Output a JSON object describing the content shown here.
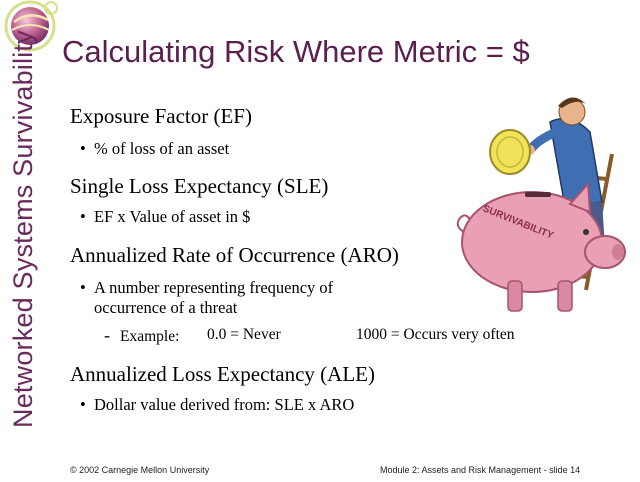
{
  "sidebar": {
    "text": "Networked Systems Survivability",
    "logo_icon": "globe-logo-icon"
  },
  "title": "Calculating Risk Where Metric = $",
  "sections": [
    {
      "heading": "Exposure Factor (EF)",
      "bullet": "% of loss of an asset"
    },
    {
      "heading": "Single Loss Expectancy (SLE)",
      "bullet": "EF x Value of asset in $"
    },
    {
      "heading": "Annualized Rate of Occurrence (ARO)",
      "bullet_line1": "A number representing frequency of",
      "bullet_line2": "occurrence of a threat",
      "sub": {
        "label": "Example:",
        "never": "0.0 = Never",
        "often": "1000 = Occurs very often"
      }
    },
    {
      "heading": "Annualized Loss Expectancy (ALE)",
      "bullet": "Dollar value derived from:  SLE x ARO"
    }
  ],
  "art": {
    "piggy_label": "SURVIVABILITY",
    "icon": "man-with-piggy-bank-illustration"
  },
  "footer": {
    "left": "© 2002 Carnegie Mellon University",
    "right": "Module 2:  Assets and Risk Management - slide 14"
  },
  "colors": {
    "title": "#5a1f4f",
    "sidebar": "#6b2a5e",
    "pig": "#e9a0b4",
    "coin": "#f2e15a"
  }
}
